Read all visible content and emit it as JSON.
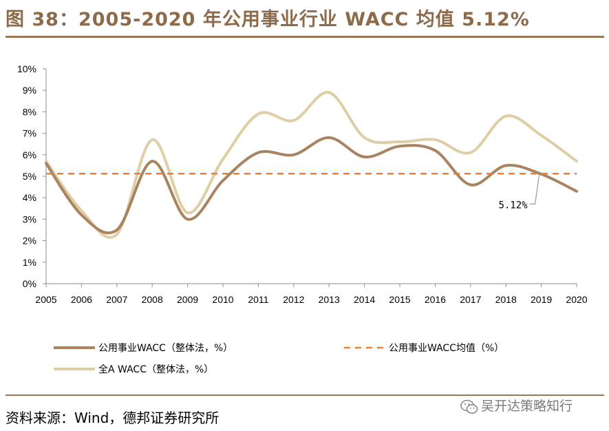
{
  "title": "图 38：2005-2020 年公用事业行业 WACC 均值 5.12%",
  "source": "资料来源：Wind，德邦证券研究所",
  "watermark": "吴开达策略知行",
  "colors": {
    "utility": "#a98360",
    "market": "#dfcda5",
    "mean": "#ef7e2e",
    "rule": "#9b7756",
    "title": "#8c6a4a"
  },
  "chart_data": {
    "type": "line",
    "title": "2005-2020 年公用事业行业 WACC 均值 5.12%",
    "xlabel": "",
    "ylabel": "",
    "x": [
      "2005",
      "2006",
      "2007",
      "2008",
      "2009",
      "2010",
      "2011",
      "2012",
      "2013",
      "2014",
      "2015",
      "2016",
      "2017",
      "2018",
      "2019",
      "2020"
    ],
    "ylim": [
      0,
      10
    ],
    "yticks": [
      "0%",
      "1%",
      "2%",
      "3%",
      "4%",
      "5%",
      "6%",
      "7%",
      "8%",
      "9%",
      "10%"
    ],
    "series": [
      {
        "name": "公用事业WACC（整体法，%）",
        "values": [
          5.6,
          3.2,
          2.5,
          5.7,
          3.0,
          4.8,
          6.1,
          6.0,
          6.8,
          5.9,
          6.4,
          6.2,
          4.6,
          5.5,
          5.1,
          4.3
        ]
      },
      {
        "name": "全A WACC（整体法，%）",
        "values": [
          5.7,
          3.4,
          2.3,
          6.7,
          3.3,
          5.8,
          7.9,
          7.6,
          8.9,
          6.8,
          6.6,
          6.7,
          6.1,
          7.8,
          6.9,
          5.7
        ]
      },
      {
        "name": "公用事业WACC均值（%）",
        "values": [
          5.12,
          5.12,
          5.12,
          5.12,
          5.12,
          5.12,
          5.12,
          5.12,
          5.12,
          5.12,
          5.12,
          5.12,
          5.12,
          5.12,
          5.12,
          5.12
        ]
      }
    ],
    "annotation": {
      "text": "5.12%",
      "value": 5.12
    },
    "legend_position": "bottom"
  }
}
